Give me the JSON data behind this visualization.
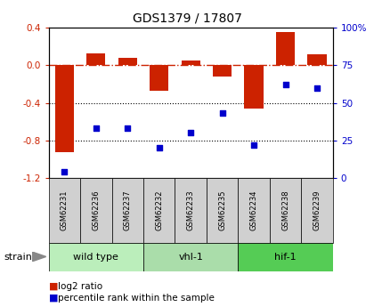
{
  "title": "GDS1379 / 17807",
  "samples": [
    "GSM62231",
    "GSM62236",
    "GSM62237",
    "GSM62232",
    "GSM62233",
    "GSM62235",
    "GSM62234",
    "GSM62238",
    "GSM62239"
  ],
  "log2_ratio": [
    -0.92,
    0.13,
    0.08,
    -0.27,
    0.05,
    -0.12,
    -0.46,
    0.35,
    0.12
  ],
  "percentile_rank": [
    4,
    33,
    33,
    20,
    30,
    43,
    22,
    62,
    60
  ],
  "groups": [
    {
      "label": "wild type",
      "indices": [
        0,
        1,
        2
      ],
      "color": "#bbeebb"
    },
    {
      "label": "vhl-1",
      "indices": [
        3,
        4,
        5
      ],
      "color": "#aaddaa"
    },
    {
      "label": "hif-1",
      "indices": [
        6,
        7,
        8
      ],
      "color": "#55cc55"
    }
  ],
  "ylim_left": [
    -1.2,
    0.4
  ],
  "ylim_right": [
    0,
    100
  ],
  "yticks_left": [
    -1.2,
    -0.8,
    -0.4,
    0.0,
    0.4
  ],
  "yticks_right": [
    0,
    25,
    50,
    75,
    100
  ],
  "bar_color": "#cc2200",
  "dot_color": "#0000cc",
  "zero_line_color": "#cc2200",
  "grid_color": "#000000",
  "legend_log2": "log2 ratio",
  "legend_pct": "percentile rank within the sample",
  "strain_label": "strain"
}
